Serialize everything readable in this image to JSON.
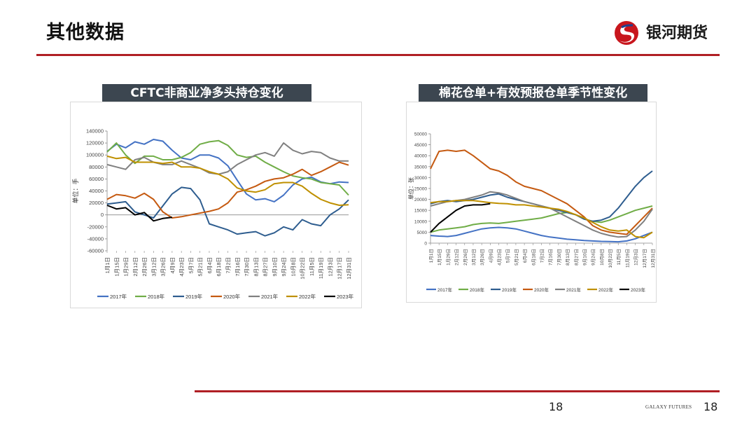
{
  "header": {
    "title": "其他数据",
    "brand": "银河期货"
  },
  "footer": {
    "page_center": "18",
    "page_right": "18",
    "brand": "GALAXY FUTURES"
  },
  "chart_data": [
    {
      "type": "line",
      "title": "CFTC非商业净多头持仓变化",
      "ylabel": "单位：手",
      "ylim": [
        -60000,
        140000
      ],
      "yticks": [
        -60000,
        -40000,
        -20000,
        0,
        20000,
        40000,
        60000,
        80000,
        100000,
        120000,
        140000
      ],
      "x_dates": [
        "1月1日",
        "1月15日",
        "1月29日",
        "2月12日",
        "2月26日",
        "3月12日",
        "3月26日",
        "4月9日",
        "4月23日",
        "5月7日",
        "5月21日",
        "6月4日",
        "6月18日",
        "7月2日",
        "7月16日",
        "7月30日",
        "8月13日",
        "8月27日",
        "9月10日",
        "9月24日",
        "10月8日",
        "10月22日",
        "11月5日",
        "11月19日",
        "12月3日",
        "12月17日",
        "12月31日"
      ],
      "series": [
        {
          "name": "2017年",
          "color": "#4472c4",
          "values": [
            106000,
            118000,
            112000,
            122000,
            118000,
            126000,
            123000,
            108000,
            95000,
            92000,
            100000,
            100000,
            95000,
            82000,
            58000,
            35000,
            25000,
            27000,
            22000,
            33000,
            50000,
            60000,
            63000,
            55000,
            52000,
            55000,
            54000
          ]
        },
        {
          "name": "2018年",
          "color": "#70ad47",
          "values": [
            105000,
            120000,
            100000,
            86000,
            98000,
            98000,
            92000,
            92000,
            96000,
            104000,
            118000,
            122000,
            124000,
            116000,
            100000,
            96000,
            98000,
            88000,
            80000,
            72000,
            65000,
            62000,
            60000,
            54000,
            52000,
            50000,
            33000
          ]
        },
        {
          "name": "2019年",
          "color": "#2e5d8f",
          "values": [
            18000,
            20000,
            22000,
            5000,
            0,
            -5000,
            15000,
            35000,
            46000,
            44000,
            25000,
            -15000,
            -20000,
            -25000,
            -32000,
            -30000,
            -28000,
            -35000,
            -30000,
            -20000,
            -25000,
            -8000,
            -15000,
            -18000,
            0,
            10000,
            25000
          ]
        },
        {
          "name": "2020年",
          "color": "#c55a11",
          "values": [
            26000,
            34000,
            32000,
            28000,
            36000,
            26000,
            5000,
            -5000,
            -3000,
            0,
            3000,
            6000,
            10000,
            20000,
            38000,
            42000,
            48000,
            56000,
            60000,
            62000,
            68000,
            76000,
            66000,
            72000,
            80000,
            88000,
            83000
          ]
        },
        {
          "name": "2021年",
          "color": "#808080",
          "values": [
            84000,
            80000,
            76000,
            92000,
            96000,
            88000,
            84000,
            84000,
            90000,
            84000,
            78000,
            70000,
            68000,
            72000,
            84000,
            92000,
            100000,
            104000,
            98000,
            120000,
            108000,
            102000,
            106000,
            104000,
            95000,
            90000,
            90000
          ]
        },
        {
          "name": "2022年",
          "color": "#bf9000",
          "values": [
            98000,
            94000,
            96000,
            88000,
            88000,
            88000,
            86000,
            88000,
            80000,
            80000,
            78000,
            72000,
            68000,
            60000,
            45000,
            40000,
            38000,
            42000,
            52000,
            54000,
            54000,
            48000,
            36000,
            26000,
            20000,
            16000,
            17000
          ]
        },
        {
          "name": "2023年",
          "color": "#000000",
          "values": [
            16000,
            10000,
            12000,
            0,
            4000,
            -10000,
            -6000,
            -4000,
            null,
            null,
            null,
            null,
            null,
            null,
            null,
            null,
            null,
            null,
            null,
            null,
            null,
            null,
            null,
            null,
            null,
            null,
            null
          ]
        }
      ]
    },
    {
      "type": "line",
      "title": "棉花仓单+有效预报仓单季节性变化",
      "ylabel": "单位：张",
      "ylim": [
        0,
        50000
      ],
      "yticks": [
        0,
        5000,
        10000,
        15000,
        20000,
        25000,
        30000,
        35000,
        40000,
        45000,
        50000
      ],
      "x_dates": [
        "1月1日",
        "1月15日",
        "1月29日",
        "2月12日",
        "2月26日",
        "3月12日",
        "3月26日",
        "4月9日",
        "4月23日",
        "5月7日",
        "5月21日",
        "6月4日",
        "6月18日",
        "7月2日",
        "7月16日",
        "7月30日",
        "8月13日",
        "8月27日",
        "9月10日",
        "9月24日",
        "10月8日",
        "10月22日",
        "11月5日",
        "11月19日",
        "12月3日",
        "12月17日",
        "12月31日"
      ],
      "series": [
        {
          "name": "2017年",
          "color": "#4472c4",
          "values": [
            3500,
            3200,
            3000,
            3500,
            4500,
            5500,
            6500,
            7000,
            7200,
            7000,
            6500,
            5500,
            4500,
            3500,
            2800,
            2300,
            1800,
            1500,
            1200,
            1000,
            800,
            700,
            600,
            1000,
            2000,
            3500,
            5000
          ]
        },
        {
          "name": "2018年",
          "color": "#70ad47",
          "values": [
            5000,
            6000,
            6500,
            7000,
            7500,
            8500,
            9000,
            9200,
            9000,
            9500,
            10000,
            10500,
            11000,
            11500,
            12500,
            13500,
            14000,
            13000,
            11000,
            10000,
            9500,
            10500,
            12000,
            13500,
            15000,
            16000,
            17000
          ]
        },
        {
          "name": "2019年",
          "color": "#2e5d8f",
          "values": [
            18000,
            19000,
            19500,
            19000,
            19500,
            20000,
            21000,
            22000,
            22500,
            21000,
            20000,
            19000,
            18000,
            17000,
            16000,
            15000,
            14000,
            13000,
            11000,
            10000,
            10500,
            12000,
            16000,
            21000,
            26000,
            30000,
            33000
          ]
        },
        {
          "name": "2020年",
          "color": "#c55a11",
          "values": [
            34000,
            42000,
            42500,
            42000,
            42500,
            40000,
            37000,
            34000,
            33000,
            31000,
            28000,
            26000,
            25000,
            24000,
            22000,
            20000,
            18000,
            15000,
            12000,
            8000,
            6000,
            5000,
            4500,
            4000,
            8000,
            12000,
            16000
          ]
        },
        {
          "name": "2021年",
          "color": "#808080",
          "values": [
            17000,
            18000,
            19000,
            19500,
            20000,
            21000,
            22000,
            23500,
            23000,
            22000,
            20500,
            19000,
            18000,
            17000,
            16000,
            14000,
            12000,
            10000,
            8000,
            6000,
            4500,
            3500,
            2800,
            3000,
            6000,
            10000,
            15500
          ]
        },
        {
          "name": "2022年",
          "color": "#bf9000",
          "values": [
            18500,
            19000,
            19000,
            19500,
            19500,
            19500,
            19000,
            18500,
            18200,
            18000,
            17500,
            17500,
            17000,
            16500,
            16000,
            15500,
            14500,
            13000,
            11500,
            9500,
            7500,
            6000,
            5500,
            6000,
            3000,
            2500,
            5000
          ]
        },
        {
          "name": "2023年",
          "color": "#000000",
          "values": [
            5000,
            9000,
            12000,
            15000,
            17000,
            17500,
            17500,
            18000,
            null,
            null,
            null,
            null,
            null,
            null,
            null,
            null,
            null,
            null,
            null,
            null,
            null,
            null,
            null,
            null,
            null,
            null,
            null
          ]
        }
      ]
    }
  ]
}
